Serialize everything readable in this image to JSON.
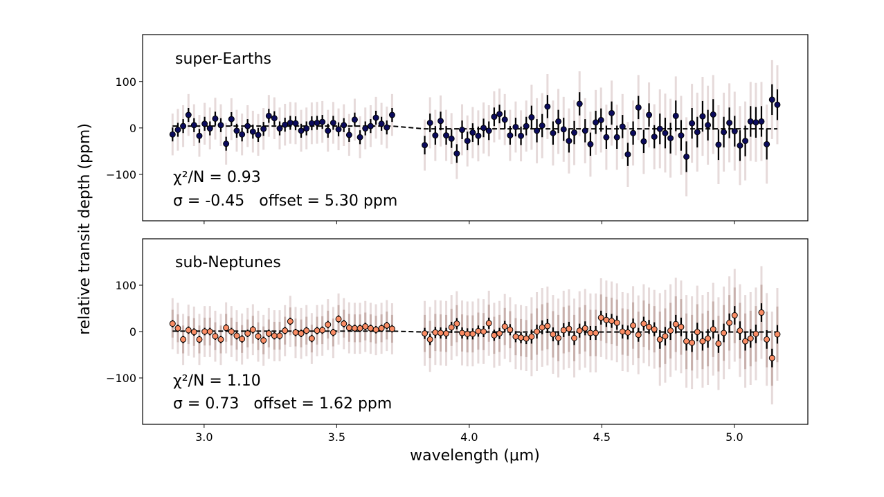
{
  "chart_data": {
    "type": "scatter",
    "xlabel": "wavelength (μm)",
    "ylabel": "relative transit depth (ppm)",
    "xlim": [
      2.768,
      5.277
    ],
    "xticks": [
      3.0,
      3.5,
      4.0,
      4.5,
      5.0
    ],
    "xtick_labels": [
      "3.0",
      "3.5",
      "4.0",
      "4.5",
      "5.0"
    ],
    "ytick_labels": [
      "100",
      "0",
      "−100"
    ],
    "yticks": [
      100,
      0,
      -100
    ],
    "grid": false,
    "wavelength": [
      2.881,
      2.901,
      2.921,
      2.941,
      2.962,
      2.982,
      3.002,
      3.022,
      3.042,
      3.063,
      3.083,
      3.103,
      3.123,
      3.143,
      3.164,
      3.184,
      3.204,
      3.224,
      3.244,
      3.265,
      3.285,
      3.305,
      3.325,
      3.345,
      3.366,
      3.386,
      3.406,
      3.426,
      3.446,
      3.467,
      3.487,
      3.507,
      3.527,
      3.547,
      3.568,
      3.588,
      3.608,
      3.628,
      3.648,
      3.669,
      3.689,
      3.709,
      3.832,
      3.852,
      3.872,
      3.892,
      3.913,
      3.933,
      3.953,
      3.973,
      3.993,
      4.013,
      4.034,
      4.054,
      4.074,
      4.094,
      4.114,
      4.134,
      4.154,
      4.175,
      4.195,
      4.215,
      4.235,
      4.255,
      4.275,
      4.295,
      4.316,
      4.336,
      4.356,
      4.376,
      4.396,
      4.416,
      4.437,
      4.457,
      4.477,
      4.497,
      4.517,
      4.537,
      4.557,
      4.578,
      4.598,
      4.618,
      4.638,
      4.658,
      4.678,
      4.698,
      4.719,
      4.739,
      4.759,
      4.779,
      4.799,
      4.819,
      4.84,
      4.86,
      4.88,
      4.9,
      4.92,
      4.94,
      4.96,
      4.981,
      5.001,
      5.021,
      5.041,
      5.061,
      5.081,
      5.102,
      5.122,
      5.142,
      5.162
    ],
    "panels": [
      {
        "label": "super-Earths",
        "chi2": "χ²/N = 0.93",
        "stats": "σ = -0.45   offset = 5.30 ppm",
        "ylim": [
          -200,
          201
        ],
        "marker_color": "#0b0b5c",
        "y": [
          -14,
          -4,
          4,
          28,
          6,
          -17,
          9,
          -1,
          20,
          6,
          -34,
          19,
          -6,
          -14,
          4,
          -8,
          -15,
          -2,
          26,
          21,
          -1,
          7,
          11,
          10,
          -6,
          -1,
          10,
          11,
          13,
          -6,
          11,
          -3,
          6,
          -15,
          18,
          -20,
          -1,
          4,
          22,
          9,
          1,
          28,
          -37,
          11,
          -16,
          15,
          -16,
          -23,
          -55,
          -4,
          -28,
          -10,
          -17,
          0,
          -6,
          24,
          30,
          18,
          -16,
          2,
          -17,
          4,
          23,
          -6,
          5,
          46,
          -11,
          14,
          -3,
          -28,
          -10,
          52,
          -6,
          -35,
          12,
          17,
          -20,
          32,
          -20,
          3,
          -57,
          -11,
          44,
          -29,
          28,
          -19,
          -2,
          -11,
          -22,
          26,
          -16,
          -62,
          10,
          -9,
          25,
          6,
          29,
          -36,
          -9,
          11,
          -7,
          -38,
          -28,
          14,
          12,
          14,
          -35,
          61,
          50
        ],
        "yerr_inner": [
          15,
          15,
          15,
          15,
          15,
          15,
          15,
          15,
          15,
          15,
          15,
          15,
          15,
          15,
          15,
          15,
          15,
          15,
          15,
          15,
          15,
          15,
          15,
          15,
          15,
          15,
          15,
          15,
          15,
          15,
          15,
          15,
          15,
          15,
          15,
          15,
          15,
          15,
          15,
          15,
          15,
          15,
          20,
          20,
          20,
          20,
          20,
          20,
          20,
          20,
          20,
          20,
          20,
          20,
          20,
          20,
          20,
          20,
          20,
          20,
          20,
          20,
          25,
          25,
          25,
          25,
          25,
          25,
          25,
          25,
          25,
          25,
          25,
          25,
          25,
          25,
          25,
          25,
          25,
          25,
          25,
          25,
          25,
          25,
          25,
          25,
          33,
          33,
          33,
          33,
          33,
          33,
          33,
          33,
          33,
          33,
          33,
          33,
          33,
          33,
          33,
          33,
          33,
          33,
          33,
          33,
          33,
          33,
          33
        ],
        "yerr_outer": [
          45,
          45,
          45,
          45,
          45,
          45,
          45,
          45,
          45,
          45,
          45,
          45,
          45,
          45,
          45,
          45,
          45,
          45,
          45,
          45,
          45,
          45,
          45,
          45,
          45,
          45,
          45,
          45,
          45,
          45,
          45,
          45,
          45,
          45,
          45,
          45,
          45,
          45,
          45,
          45,
          45,
          45,
          55,
          55,
          55,
          55,
          55,
          55,
          55,
          55,
          55,
          55,
          55,
          55,
          55,
          55,
          55,
          55,
          55,
          55,
          55,
          55,
          70,
          70,
          70,
          70,
          70,
          70,
          70,
          70,
          70,
          70,
          70,
          70,
          70,
          70,
          70,
          70,
          70,
          70,
          70,
          70,
          70,
          70,
          70,
          70,
          85,
          85,
          85,
          85,
          85,
          85,
          85,
          85,
          85,
          85,
          85,
          85,
          85,
          85,
          85,
          85,
          85,
          85,
          85,
          85,
          85,
          85,
          85
        ],
        "model": [
          [
            2.881,
            4
          ],
          [
            3.709,
            4
          ],
          [
            3.832,
            -2
          ],
          [
            5.162,
            -2
          ]
        ]
      },
      {
        "label": "sub-Neptunes",
        "chi2": "χ²/N = 1.10",
        "stats": "σ = 0.73   offset = 1.62 ppm",
        "ylim": [
          -200,
          200
        ],
        "marker_color": "#fa8c64",
        "y": [
          17,
          7,
          -17,
          3,
          -1,
          -17,
          0,
          0,
          -10,
          -17,
          8,
          0,
          -9,
          -16,
          -4,
          4,
          -10,
          -19,
          -4,
          -9,
          -9,
          2,
          22,
          -2,
          -4,
          2,
          -15,
          2,
          3,
          15,
          -2,
          27,
          17,
          8,
          7,
          7,
          11,
          7,
          4,
          7,
          13,
          6,
          -4,
          -17,
          -2,
          -3,
          -4,
          9,
          17,
          -3,
          -5,
          -5,
          1,
          0,
          18,
          -8,
          -4,
          11,
          4,
          -11,
          -13,
          -15,
          -11,
          0,
          9,
          12,
          -6,
          -14,
          3,
          6,
          -14,
          2,
          7,
          -3,
          -3,
          30,
          25,
          23,
          19,
          0,
          -2,
          13,
          -7,
          17,
          10,
          5,
          -17,
          -10,
          2,
          16,
          10,
          -21,
          -24,
          -1,
          -21,
          -15,
          5,
          -26,
          -3,
          19,
          35,
          2,
          -21,
          -15,
          -5,
          41,
          -17,
          -57,
          -6
        ],
        "yerr_inner": [
          8,
          8,
          8,
          8,
          8,
          8,
          8,
          8,
          8,
          8,
          8,
          8,
          8,
          8,
          8,
          8,
          8,
          8,
          8,
          8,
          8,
          8,
          8,
          8,
          8,
          8,
          8,
          8,
          8,
          8,
          8,
          8,
          8,
          8,
          8,
          8,
          8,
          8,
          8,
          8,
          8,
          8,
          12,
          12,
          12,
          12,
          12,
          12,
          12,
          12,
          12,
          12,
          12,
          12,
          12,
          12,
          12,
          12,
          12,
          12,
          12,
          12,
          15,
          15,
          15,
          15,
          15,
          15,
          15,
          15,
          15,
          15,
          15,
          15,
          15,
          15,
          15,
          15,
          15,
          15,
          15,
          15,
          15,
          15,
          15,
          15,
          20,
          20,
          20,
          20,
          20,
          20,
          20,
          20,
          20,
          20,
          20,
          20,
          20,
          20,
          20,
          20,
          20,
          20,
          20,
          20,
          20,
          20,
          20
        ],
        "yerr_mid": [
          30,
          30,
          30,
          30,
          30,
          30,
          30,
          30,
          30,
          30,
          30,
          30,
          30,
          30,
          30,
          30,
          30,
          30,
          30,
          30,
          30,
          30,
          30,
          30,
          30,
          30,
          30,
          30,
          30,
          30,
          30,
          30,
          30,
          30,
          30,
          30,
          30,
          30,
          30,
          30,
          30,
          30,
          40,
          40,
          40,
          40,
          40,
          40,
          40,
          40,
          40,
          40,
          40,
          40,
          40,
          40,
          40,
          40,
          40,
          40,
          40,
          40,
          50,
          50,
          50,
          50,
          50,
          50,
          50,
          50,
          50,
          50,
          50,
          50,
          50,
          50,
          50,
          50,
          50,
          50,
          50,
          50,
          50,
          50,
          50,
          50,
          60,
          60,
          60,
          60,
          60,
          60,
          60,
          60,
          60,
          60,
          60,
          60,
          60,
          60,
          60,
          60,
          60,
          60,
          60,
          60,
          60,
          60,
          60
        ],
        "yerr_outer": [
          55,
          55,
          55,
          55,
          55,
          55,
          55,
          55,
          55,
          55,
          55,
          55,
          55,
          55,
          55,
          55,
          55,
          55,
          55,
          55,
          55,
          55,
          55,
          55,
          55,
          55,
          55,
          55,
          55,
          55,
          55,
          55,
          55,
          55,
          55,
          55,
          55,
          55,
          55,
          55,
          55,
          55,
          70,
          70,
          70,
          70,
          70,
          70,
          70,
          70,
          70,
          70,
          70,
          70,
          70,
          70,
          70,
          70,
          70,
          70,
          70,
          70,
          85,
          85,
          85,
          85,
          85,
          85,
          85,
          85,
          85,
          85,
          85,
          85,
          85,
          85,
          85,
          85,
          85,
          85,
          85,
          85,
          85,
          85,
          85,
          85,
          100,
          100,
          100,
          100,
          100,
          100,
          100,
          100,
          100,
          100,
          100,
          100,
          100,
          100,
          100,
          100,
          100,
          100,
          100,
          100,
          100,
          100,
          100
        ],
        "model": [
          [
            2.881,
            1
          ],
          [
            3.709,
            1
          ],
          [
            3.832,
            -1
          ],
          [
            5.162,
            -1
          ]
        ]
      }
    ],
    "colors": {
      "err_outer": "#e6dada",
      "err_mid": "#c8b0ac",
      "err_inner": "#000000",
      "model": "#000000"
    }
  }
}
